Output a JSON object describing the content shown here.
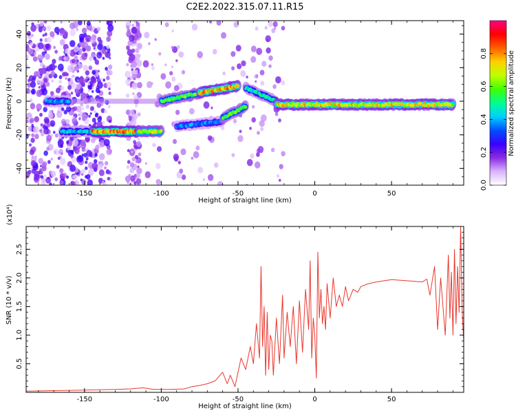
{
  "title": "C2E2.2022.315.07.11.R15",
  "chart_data": [
    {
      "type": "heatmap",
      "xlabel": "Height of straight line (km)",
      "ylabel": "Frequency (Hz)",
      "xlim": [
        -188,
        97
      ],
      "ylim": [
        -50,
        48
      ],
      "xticks": [
        -150,
        -100,
        -50,
        0,
        50
      ],
      "yticks": [
        -40,
        -20,
        0,
        20,
        40
      ],
      "colorbar": {
        "label": "Normalized spectral amplitude",
        "range": [
          0,
          1
        ],
        "ticks": [
          "0.0",
          "0.2",
          "0.4",
          "0.6",
          "0.8"
        ],
        "colors": [
          "#ffffff",
          "#d9b3ff",
          "#8a2be2",
          "#3a00ff",
          "#0050ff",
          "#00d0ff",
          "#00ff90",
          "#40ff00",
          "#c0ff00",
          "#ffd000",
          "#ff6000",
          "#ff0000",
          "#ff0080"
        ]
      },
      "features": [
        {
          "x": [
            -175,
            -160
          ],
          "freq": 0,
          "amp": 0.4
        },
        {
          "x": [
            -165,
            -145
          ],
          "freq": -18,
          "amp": 0.45
        },
        {
          "x": [
            -145,
            -115
          ],
          "freq": -18,
          "amp": 0.85
        },
        {
          "x": [
            -115,
            -100
          ],
          "freq": -18,
          "amp": 0.7
        },
        {
          "x": [
            -100,
            -75
          ],
          "freq": [
            0,
            5
          ],
          "amp": 0.6
        },
        {
          "x": [
            -75,
            -50
          ],
          "freq": [
            5,
            9
          ],
          "amp": 0.8
        },
        {
          "x": [
            -90,
            -60
          ],
          "freq": [
            -15,
            -12
          ],
          "amp": 0.4
        },
        {
          "x": [
            -60,
            -45
          ],
          "freq": [
            -10,
            -3
          ],
          "amp": 0.6
        },
        {
          "x": [
            -45,
            -25
          ],
          "freq": [
            8,
            0
          ],
          "amp": 0.5
        },
        {
          "x": [
            -25,
            90
          ],
          "freq": -2,
          "amp": 0.75
        }
      ]
    },
    {
      "type": "line",
      "xlabel": "Height of straight line (km)",
      "ylabel": "SNR (10 * v/v)",
      "yscale_label": "(x10⁴)",
      "xlim": [
        -188,
        97
      ],
      "ylim": [
        0,
        2.9
      ],
      "xticks": [
        -150,
        -100,
        -50,
        0,
        50
      ],
      "yticks": [
        0.5,
        1.0,
        1.5,
        2.0,
        2.5
      ],
      "color": "#e8352b",
      "series": [
        {
          "x": [
            -188,
            -170,
            -150,
            -130,
            -120,
            -112,
            -105,
            -95,
            -85,
            -80,
            -75,
            -70,
            -65,
            -60,
            -57,
            -55,
            -52,
            -48,
            -45,
            -42,
            -40,
            -38,
            -36,
            -35,
            -34,
            -33,
            -32,
            -31,
            -30,
            -29,
            -28,
            -27,
            -25,
            -23,
            -21,
            -20,
            -18,
            -16,
            -14,
            -12,
            -10,
            -8,
            -6,
            -4,
            -3,
            -2,
            -1,
            0,
            1,
            2,
            3,
            4,
            5,
            6,
            7,
            8,
            10,
            12,
            14,
            16,
            18,
            20,
            22,
            25,
            28,
            30,
            35,
            40,
            50,
            60,
            70,
            73,
            75,
            78,
            80,
            82,
            85,
            87,
            88,
            89,
            90,
            91,
            92,
            93,
            94,
            95,
            96,
            97
          ],
          "y": [
            0.02,
            0.03,
            0.04,
            0.05,
            0.06,
            0.08,
            0.05,
            0.05,
            0.06,
            0.1,
            0.12,
            0.15,
            0.2,
            0.35,
            0.15,
            0.3,
            0.1,
            0.6,
            0.4,
            0.8,
            0.5,
            1.2,
            0.6,
            2.2,
            0.8,
            1.5,
            0.3,
            1.4,
            0.4,
            1.0,
            0.9,
            0.3,
            1.3,
            0.5,
            1.7,
            0.6,
            1.4,
            0.8,
            1.5,
            0.5,
            1.6,
            0.7,
            1.8,
            1.1,
            2.3,
            0.6,
            1.3,
            1.0,
            0.25,
            2.45,
            1.3,
            1.8,
            1.2,
            1.5,
            1.1,
            1.9,
            1.3,
            2.0,
            1.5,
            1.7,
            1.5,
            1.85,
            1.6,
            1.8,
            1.75,
            1.85,
            1.9,
            1.93,
            1.97,
            1.95,
            1.93,
            1.98,
            1.7,
            2.2,
            1.1,
            2.0,
            1.0,
            2.4,
            1.3,
            2.1,
            1.0,
            2.5,
            1.2,
            2.2,
            1.4,
            2.9,
            1.4,
            0.9
          ]
        }
      ]
    }
  ]
}
